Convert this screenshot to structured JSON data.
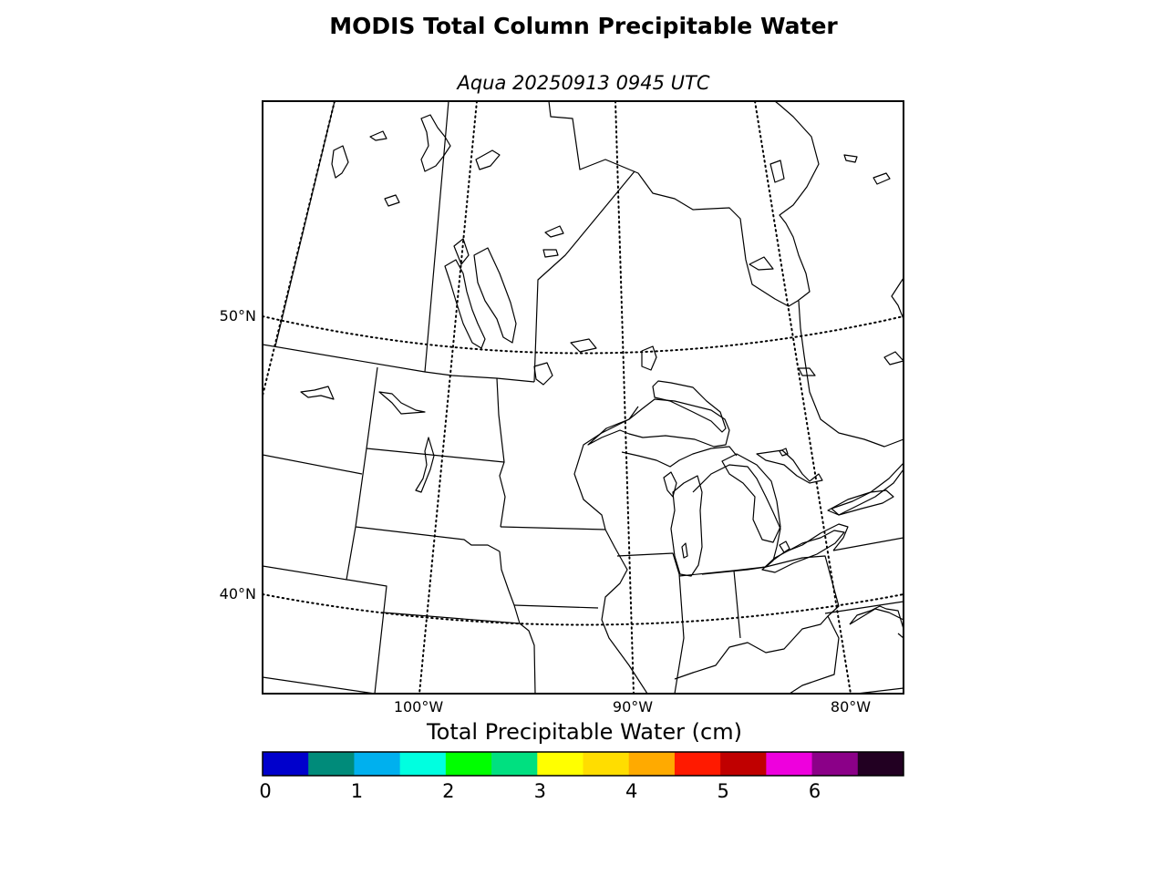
{
  "title": "MODIS Total Column Precipitable Water",
  "subtitle": "Aqua 20250913 0945 UTC",
  "map": {
    "lat_labels": [
      "50°N",
      "40°N"
    ],
    "lon_labels": [
      "100°W",
      "90°W",
      "80°W"
    ]
  },
  "colorbar": {
    "title": "Total Precipitable Water (cm)",
    "tick_labels": [
      "0",
      "1",
      "2",
      "3",
      "4",
      "5",
      "6"
    ],
    "colors": [
      "#0000cc",
      "#008b7a",
      "#00b0ee",
      "#00ffe0",
      "#00ff00",
      "#00e080",
      "#ffff00",
      "#ffdd00",
      "#ffaa00",
      "#ff1a00",
      "#c00000",
      "#ee00dd",
      "#8b0088",
      "#220022"
    ]
  }
}
